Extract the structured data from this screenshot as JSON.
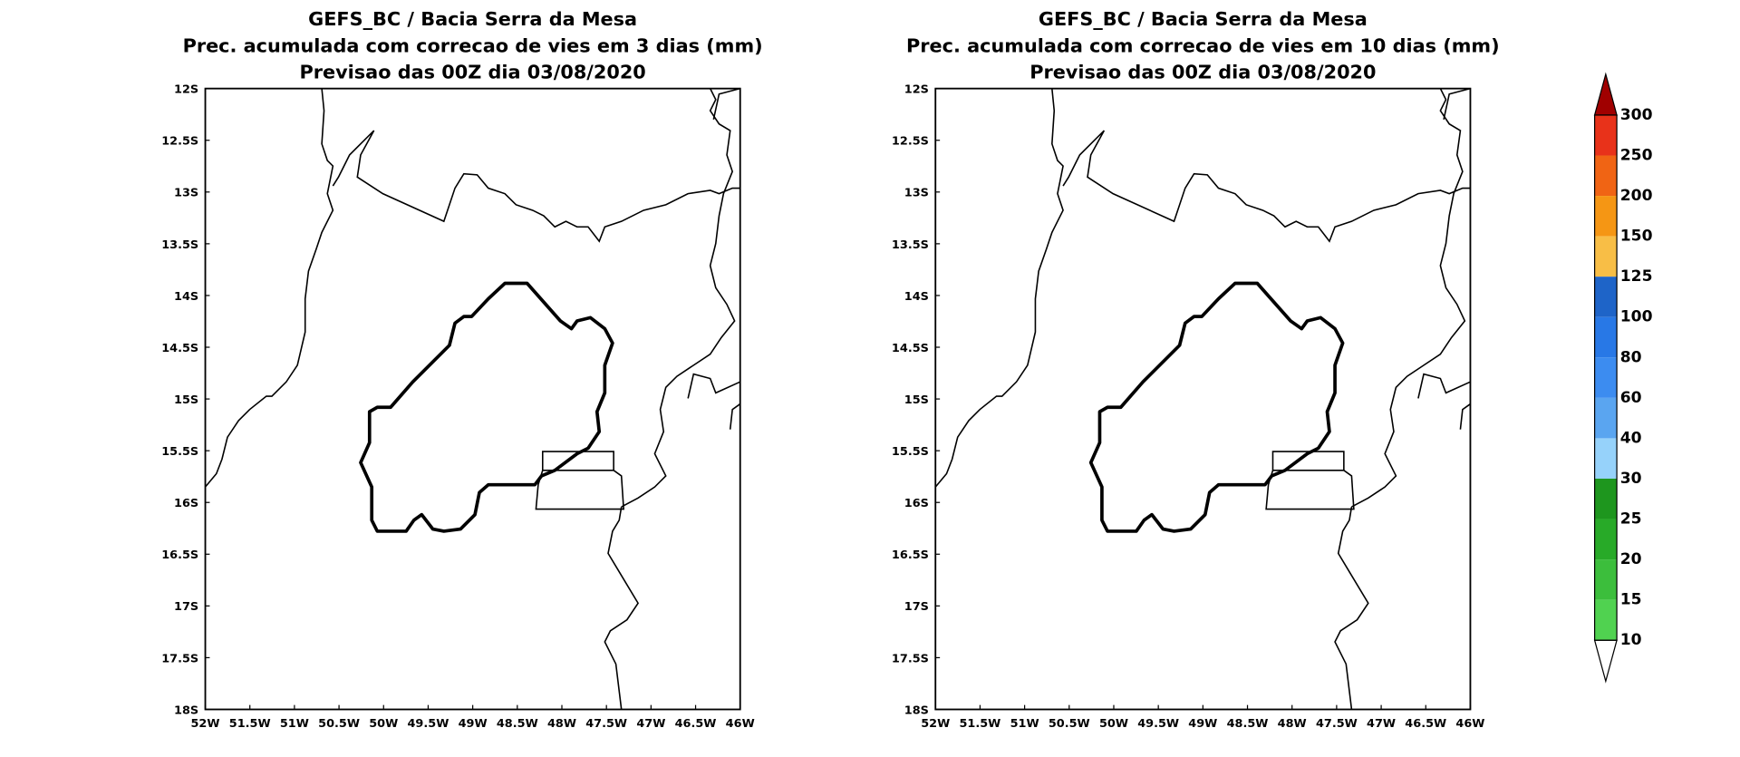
{
  "panels": [
    {
      "title": [
        "GEFS_BC / Bacia Serra da Mesa",
        "Prec. acumulada com correcao de vies em 3 dias (mm)",
        "Previsao das 00Z dia 03/08/2020"
      ]
    },
    {
      "title": [
        "GEFS_BC / Bacia Serra da Mesa",
        "Prec. acumulada com correcao de vies em 10 dias (mm)",
        "Previsao das 00Z dia 03/08/2020"
      ]
    }
  ],
  "lat_labels": [
    "12S",
    "12.5S",
    "13S",
    "13.5S",
    "14S",
    "14.5S",
    "15S",
    "15.5S",
    "16S",
    "16.5S",
    "17S",
    "17.5S",
    "18S"
  ],
  "lon_labels": [
    "52W",
    "51.5W",
    "51W",
    "50.5W",
    "50W",
    "49.5W",
    "49W",
    "48.5W",
    "48W",
    "47.5W",
    "47W",
    "46.5W",
    "46W"
  ],
  "colorbar": {
    "levels": [
      "300",
      "250",
      "200",
      "150",
      "125",
      "100",
      "80",
      "60",
      "40",
      "30",
      "25",
      "20",
      "15",
      "10"
    ],
    "colors": [
      "#a00000",
      "#e8321a",
      "#f06414",
      "#f59614",
      "#f8be46",
      "#1e64c8",
      "#2878e6",
      "#3c8cf0",
      "#5aa5f0",
      "#96d2fa",
      "#1e961e",
      "#28aa28",
      "#3cbe3c",
      "#50d250",
      "#ffffff"
    ]
  }
}
